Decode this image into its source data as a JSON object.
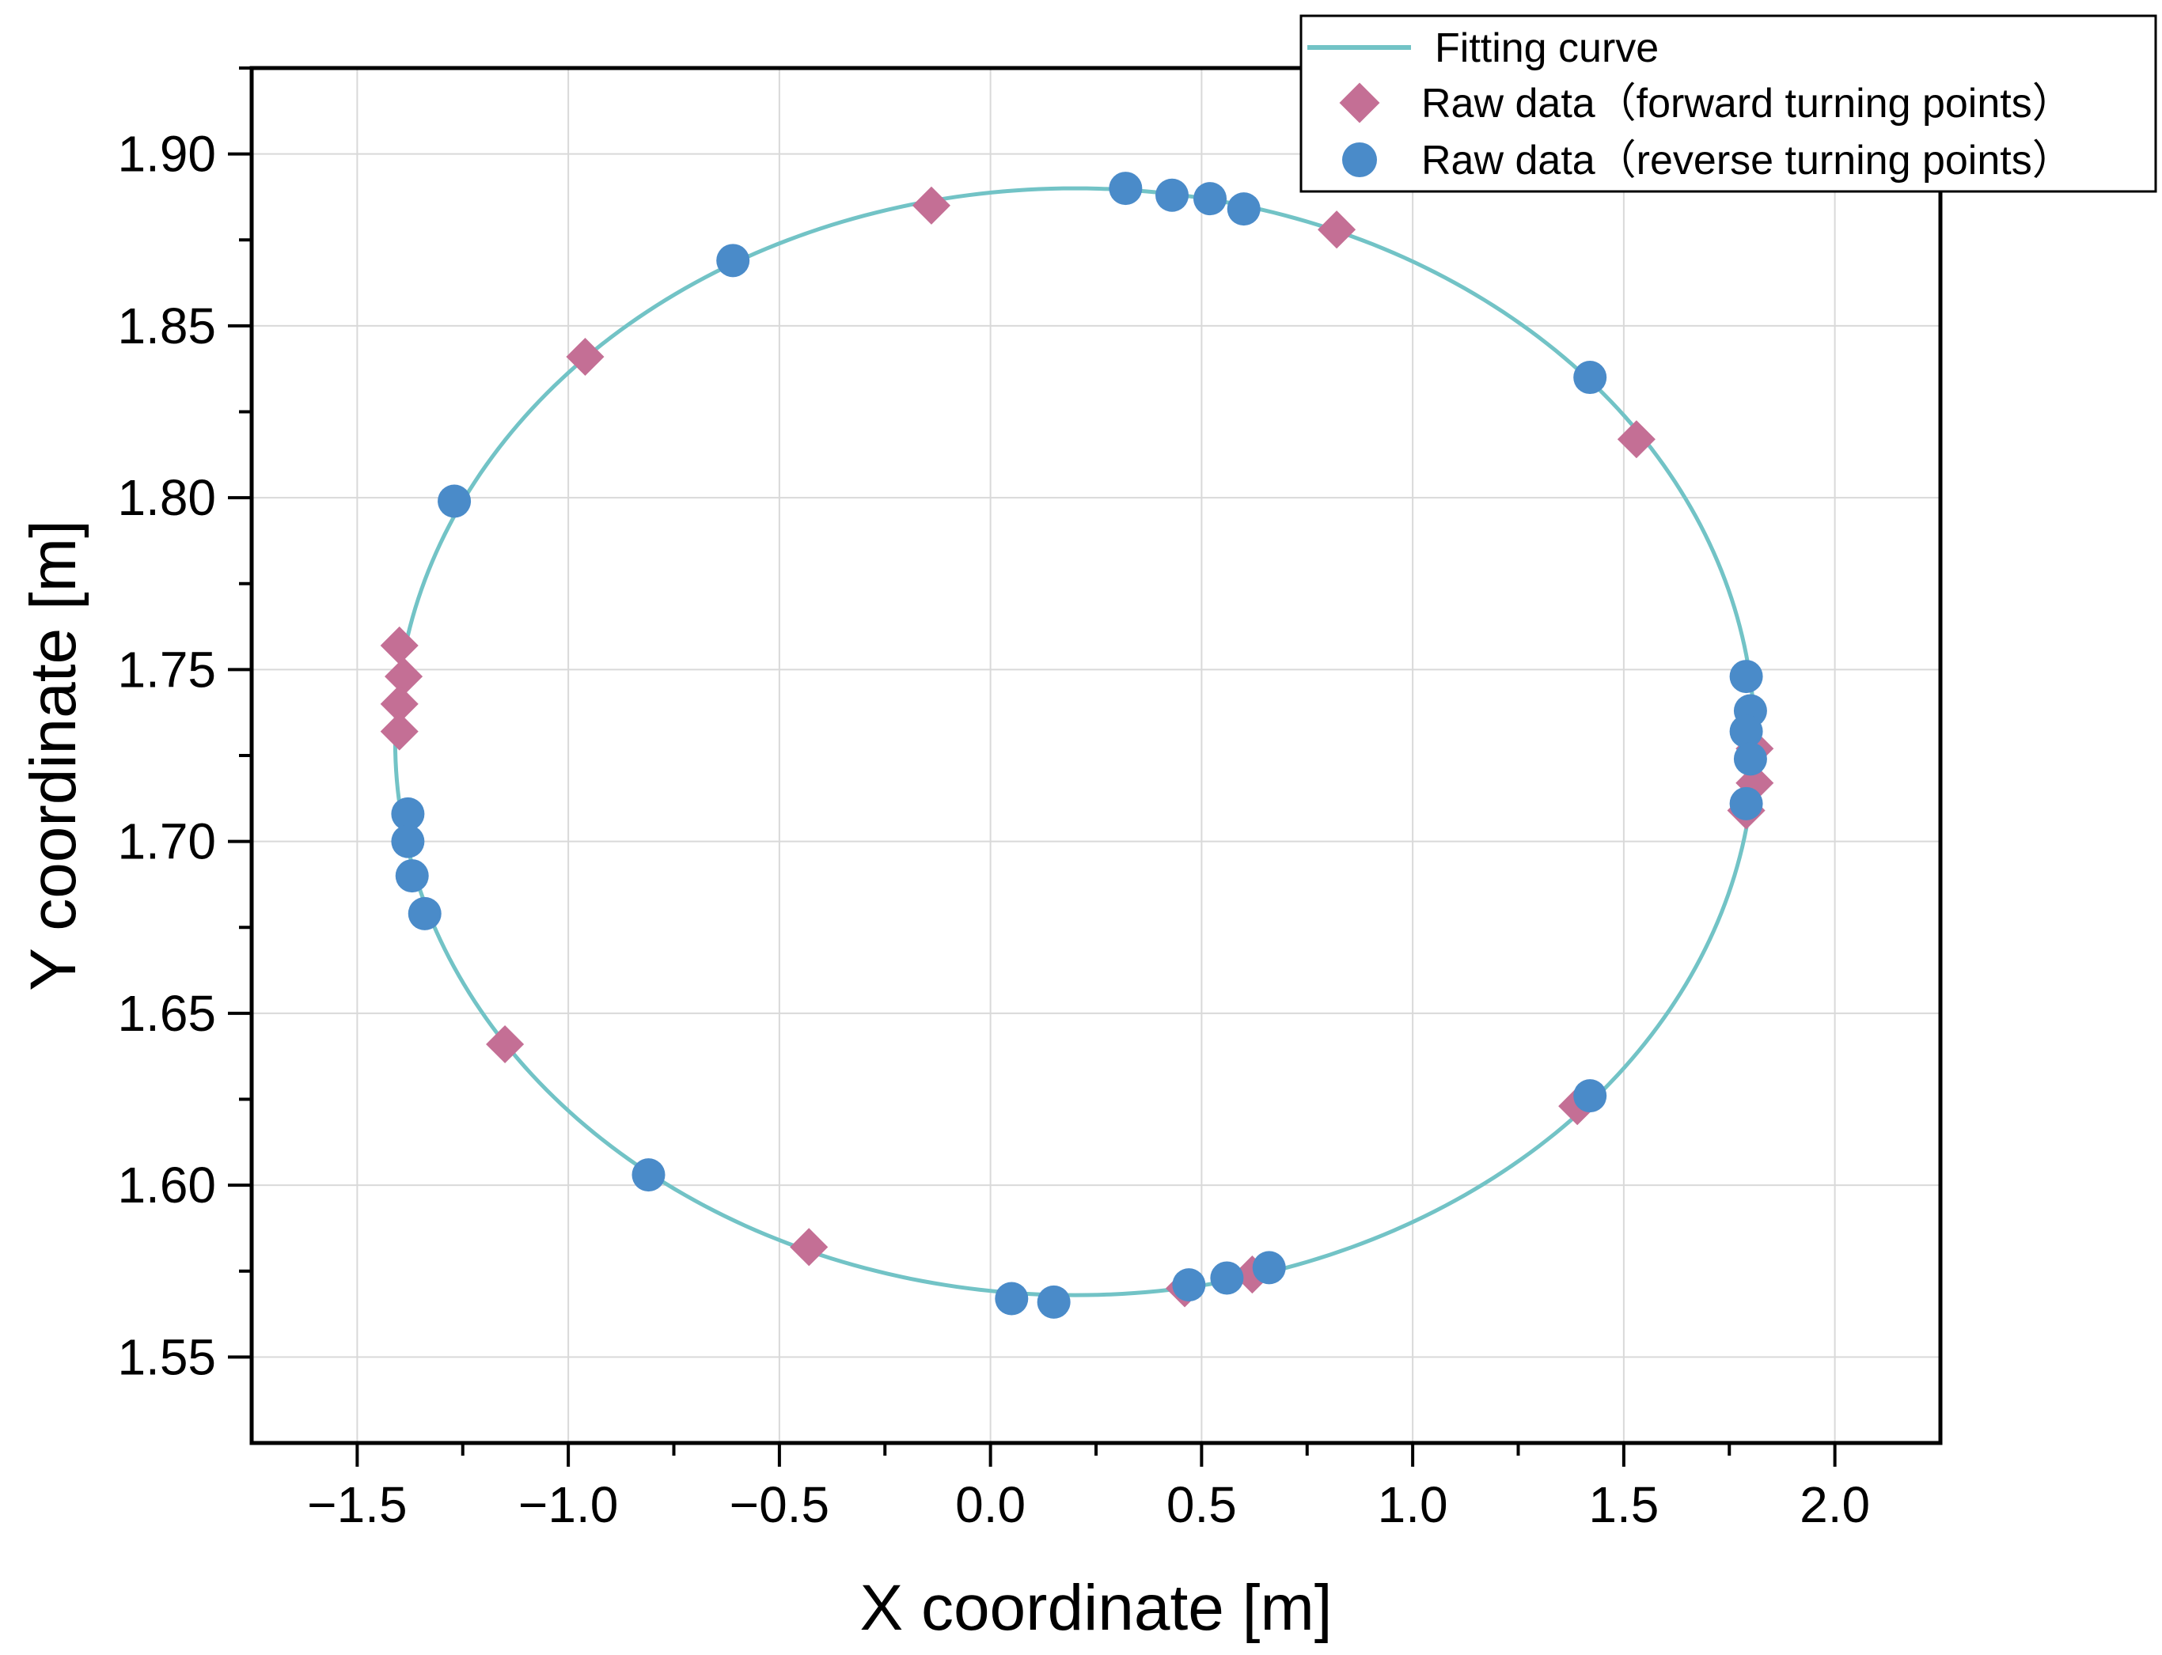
{
  "chart_data": {
    "type": "scatter",
    "title": "",
    "xlabel": "X coordinate [m]",
    "ylabel": "Y coordinate [m]",
    "xlim": [
      -1.75,
      2.25
    ],
    "ylim": [
      1.525,
      1.925
    ],
    "xticks": [
      -1.5,
      -1.0,
      -0.5,
      0.0,
      0.5,
      1.0,
      1.5,
      2.0
    ],
    "xtick_labels": [
      "−1.5",
      "−1.0",
      "−0.5",
      "0.0",
      "0.5",
      "1.0",
      "1.5",
      "2.0"
    ],
    "yticks": [
      1.55,
      1.6,
      1.65,
      1.7,
      1.75,
      1.8,
      1.85,
      1.9
    ],
    "ytick_labels": [
      "1.55",
      "1.60",
      "1.65",
      "1.70",
      "1.75",
      "1.80",
      "1.85",
      "1.90"
    ],
    "grid": true,
    "legend_position": "top-right",
    "fit_curve": {
      "type": "ellipse",
      "center_x": 0.2,
      "center_y": 1.729,
      "a": 1.61,
      "b": 0.161
    },
    "series": [
      {
        "name": "Fitting curve",
        "kind": "line",
        "color": "#72c3c6"
      },
      {
        "name": "Raw data（forward turning points）",
        "kind": "scatter",
        "marker": "diamond",
        "color": "#c46f95",
        "points": [
          [
            -0.14,
            1.885
          ],
          [
            0.82,
            1.878
          ],
          [
            -0.96,
            1.841
          ],
          [
            1.53,
            1.817
          ],
          [
            -1.4,
            1.757
          ],
          [
            -1.39,
            1.748
          ],
          [
            -1.4,
            1.74
          ],
          [
            -1.4,
            1.732
          ],
          [
            1.81,
            1.727
          ],
          [
            1.81,
            1.717
          ],
          [
            1.79,
            1.709
          ],
          [
            -1.15,
            1.641
          ],
          [
            1.39,
            1.623
          ],
          [
            -0.43,
            1.582
          ],
          [
            0.46,
            1.57
          ],
          [
            0.62,
            1.574
          ]
        ]
      },
      {
        "name": "Raw data（reverse turning points）",
        "kind": "scatter",
        "marker": "circle",
        "color": "#4a8bc9",
        "points": [
          [
            0.32,
            1.89
          ],
          [
            0.43,
            1.888
          ],
          [
            0.52,
            1.887
          ],
          [
            0.6,
            1.884
          ],
          [
            -0.61,
            1.869
          ],
          [
            1.42,
            1.835
          ],
          [
            -1.27,
            1.799
          ],
          [
            1.79,
            1.748
          ],
          [
            1.8,
            1.738
          ],
          [
            1.79,
            1.732
          ],
          [
            1.8,
            1.724
          ],
          [
            1.79,
            1.711
          ],
          [
            -1.38,
            1.708
          ],
          [
            -1.38,
            1.7
          ],
          [
            -1.37,
            1.69
          ],
          [
            -1.34,
            1.679
          ],
          [
            1.42,
            1.626
          ],
          [
            -0.81,
            1.603
          ],
          [
            0.05,
            1.567
          ],
          [
            0.15,
            1.566
          ],
          [
            0.47,
            1.571
          ],
          [
            0.56,
            1.573
          ],
          [
            0.66,
            1.576
          ]
        ]
      }
    ]
  }
}
